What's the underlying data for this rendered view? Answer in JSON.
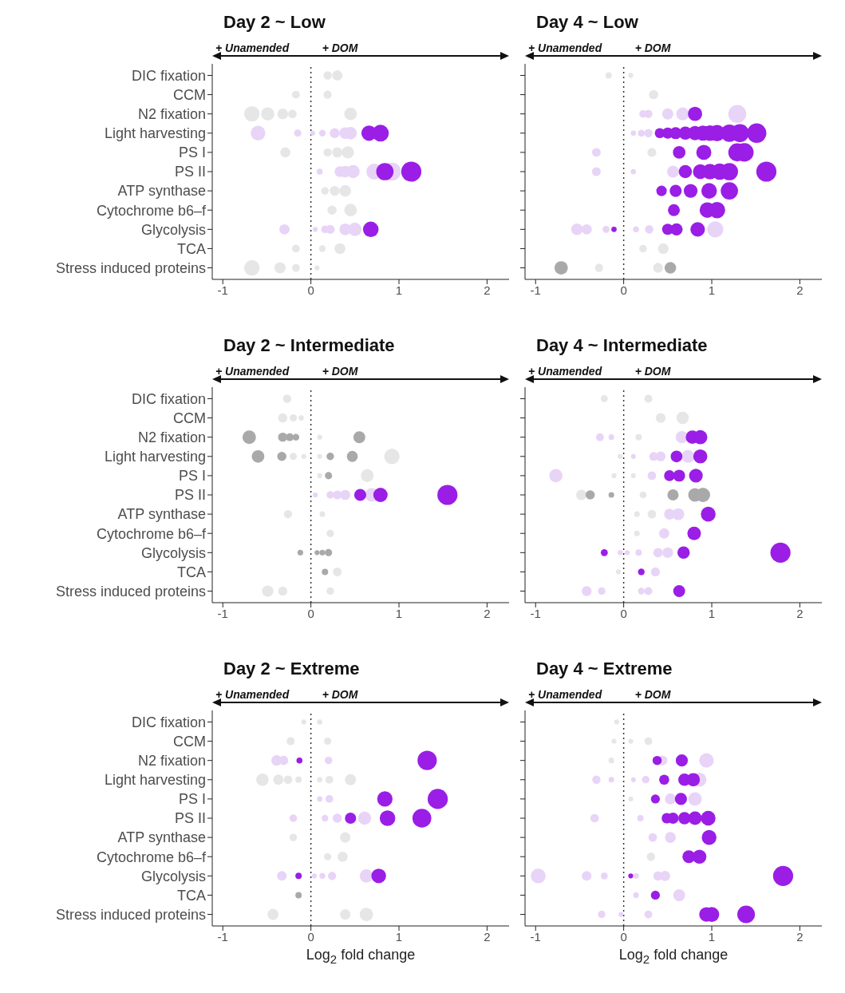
{
  "chart_data": [
    {
      "type": "bubble",
      "orientation": "horizontal",
      "title": "Day 2 ~ Low",
      "marker": "circle",
      "categories": [
        "DIC fixation",
        "CCM",
        "N2 fixation",
        "Light harvesting",
        "PS I",
        "PS II",
        "ATP synthase",
        "Cytochrome b6–f",
        "Glycolysis",
        "TCA",
        "Stress induced proteins"
      ],
      "xlim": [
        -1.12,
        2.25
      ],
      "xticks": [
        -1,
        0,
        1,
        2
      ],
      "annotations": [
        "+ Unamended",
        "+ DOM"
      ],
      "ref_lines": [
        {
          "axis": "x",
          "value": 0,
          "line_style": "dotted",
          "color": "#333333"
        }
      ],
      "series": [
        {
          "color": "#e6e6e6",
          "x": [
            "DIC fixation",
            "DIC fixation",
            "CCM",
            "CCM",
            "N2 fixation",
            "N2 fixation",
            "N2 fixation",
            "N2 fixation",
            "N2 fixation",
            "PS I",
            "PS I",
            "PS I",
            "PS I",
            "ATP synthase",
            "ATP synthase",
            "ATP synthase",
            "Cytochrome b6–f",
            "Cytochrome b6–f",
            "TCA",
            "TCA",
            "TCA",
            "Stress induced proteins",
            "Stress induced proteins",
            "Stress induced proteins",
            "Stress induced proteins"
          ],
          "values": [
            0.19,
            0.3,
            -0.17,
            0.19,
            -0.67,
            -0.49,
            -0.32,
            -0.21,
            0.45,
            -0.29,
            0.19,
            0.3,
            0.42,
            0.16,
            0.27,
            0.39,
            0.24,
            0.45,
            -0.17,
            0.13,
            0.33,
            -0.67,
            -0.35,
            -0.17,
            0.07
          ],
          "sizes": [
            0.17,
            0.26,
            0.15,
            0.17,
            0.59,
            0.43,
            0.28,
            0.18,
            0.39,
            0.25,
            0.17,
            0.26,
            0.37,
            0.14,
            0.24,
            0.34,
            0.21,
            0.39,
            0.15,
            0.11,
            0.29,
            0.59,
            0.31,
            0.15,
            0.06
          ]
        },
        {
          "color": "#e8d4f7",
          "x": [
            "Light harvesting",
            "Light harvesting",
            "Light harvesting",
            "Light harvesting",
            "Light harvesting",
            "Light harvesting",
            "Light harvesting",
            "PS II",
            "PS II",
            "PS II",
            "PS II",
            "PS II",
            "PS II",
            "Glycolysis",
            "Glycolysis",
            "Glycolysis",
            "Glycolysis",
            "Glycolysis",
            "Glycolysis"
          ],
          "values": [
            -0.6,
            -0.15,
            0.02,
            0.13,
            0.27,
            0.39,
            0.45,
            0.1,
            0.33,
            0.39,
            0.48,
            0.72,
            0.92,
            -0.3,
            0.05,
            0.16,
            0.22,
            0.39,
            0.5
          ],
          "sizes": [
            0.53,
            0.13,
            0.06,
            0.11,
            0.24,
            0.34,
            0.39,
            0.09,
            0.29,
            0.34,
            0.42,
            0.63,
            0.81,
            0.26,
            0.06,
            0.14,
            0.19,
            0.34,
            0.44
          ]
        },
        {
          "color": "#9a1ee6",
          "x": [
            "Light harvesting",
            "Light harvesting",
            "PS II",
            "PS II",
            "Glycolysis"
          ],
          "values": [
            0.66,
            0.79,
            0.84,
            1.14,
            0.68
          ],
          "sizes": [
            0.58,
            0.69,
            0.74,
            1,
            0.6
          ]
        }
      ]
    },
    {
      "type": "bubble",
      "orientation": "horizontal",
      "title": "Day 4 ~ Low",
      "marker": "circle",
      "tick_labels": "x",
      "categories": [
        "DIC fixation",
        "CCM",
        "N2 fixation",
        "Light harvesting",
        "PS I",
        "PS II",
        "ATP synthase",
        "Cytochrome b6–f",
        "Glycolysis",
        "TCA",
        "Stress induced proteins"
      ],
      "xlim": [
        -1.12,
        2.25
      ],
      "xticks": [
        -1,
        0,
        1,
        2
      ],
      "annotations": [
        "+ Unamended",
        "+ DOM"
      ],
      "ref_lines": [
        {
          "axis": "x",
          "value": 0,
          "line_style": "dotted",
          "color": "#333333"
        }
      ],
      "series": [
        {
          "color": "#e6e6e6",
          "x": [
            "DIC fixation",
            "DIC fixation",
            "CCM",
            "PS I",
            "TCA",
            "TCA",
            "Stress induced proteins",
            "Stress induced proteins"
          ],
          "values": [
            -0.17,
            0.08,
            0.34,
            0.32,
            0.22,
            0.45,
            -0.28,
            0.39
          ],
          "sizes": [
            0.1,
            0.06,
            0.21,
            0.2,
            0.14,
            0.28,
            0.17,
            0.24
          ]
        },
        {
          "color": "#e8d4f7",
          "x": [
            "N2 fixation",
            "N2 fixation",
            "N2 fixation",
            "N2 fixation",
            "N2 fixation",
            "Light harvesting",
            "Light harvesting",
            "Light harvesting",
            "PS I",
            "PS II",
            "PS II",
            "PS II",
            "Glycolysis",
            "Glycolysis",
            "Glycolysis",
            "Glycolysis",
            "Glycolysis",
            "Glycolysis"
          ],
          "values": [
            0.22,
            0.28,
            0.5,
            0.67,
            1.29,
            0.11,
            0.2,
            0.28,
            -0.31,
            -0.31,
            0.11,
            0.56,
            -0.53,
            -0.42,
            -0.2,
            0.14,
            0.29,
            1.04
          ],
          "sizes": [
            0.14,
            0.17,
            0.31,
            0.41,
            0.8,
            0.07,
            0.12,
            0.17,
            0.19,
            0.19,
            0.07,
            0.35,
            0.33,
            0.26,
            0.12,
            0.09,
            0.18,
            0.64
          ]
        },
        {
          "color": "#a9a9a9",
          "x": [
            "Stress induced proteins",
            "Stress induced proteins"
          ],
          "values": [
            -0.71,
            0.53
          ],
          "sizes": [
            0.44,
            0.33
          ]
        },
        {
          "color": "#9a1ee6",
          "x": [
            "N2 fixation",
            "Light harvesting",
            "Light harvesting",
            "Light harvesting",
            "Light harvesting",
            "Light harvesting",
            "Light harvesting",
            "Light harvesting",
            "Light harvesting",
            "Light harvesting",
            "Light harvesting",
            "Light harvesting",
            "PS I",
            "PS I",
            "PS I",
            "PS I",
            "PS II",
            "PS II",
            "PS II",
            "PS II",
            "PS II",
            "PS II",
            "ATP synthase",
            "ATP synthase",
            "ATP synthase",
            "ATP synthase",
            "ATP synthase",
            "Cytochrome b6–f",
            "Cytochrome b6–f",
            "Cytochrome b6–f",
            "Glycolysis",
            "Glycolysis",
            "Glycolysis",
            "Glycolysis"
          ],
          "values": [
            0.81,
            0.41,
            0.5,
            0.59,
            0.7,
            0.81,
            0.9,
            0.98,
            1.06,
            1.2,
            1.32,
            1.51,
            0.63,
            0.91,
            1.29,
            1.37,
            0.7,
            0.87,
            0.98,
            1.09,
            1.2,
            1.62,
            0.43,
            0.59,
            0.76,
            0.97,
            1.2,
            0.57,
            0.95,
            1.06,
            -0.11,
            0.5,
            0.6,
            0.84
          ],
          "sizes": [
            0.5,
            0.25,
            0.31,
            0.36,
            0.43,
            0.5,
            0.56,
            0.6,
            0.65,
            0.74,
            0.81,
            0.93,
            0.39,
            0.56,
            0.8,
            0.85,
            0.43,
            0.54,
            0.6,
            0.67,
            0.74,
            1,
            0.27,
            0.36,
            0.47,
            0.6,
            0.74,
            0.35,
            0.59,
            0.65,
            0.07,
            0.31,
            0.37,
            0.52
          ]
        }
      ]
    },
    {
      "type": "bubble",
      "orientation": "horizontal",
      "title": "Day 2 ~ Intermediate",
      "marker": "circle",
      "categories": [
        "DIC fixation",
        "CCM",
        "N2 fixation",
        "Light harvesting",
        "PS I",
        "PS II",
        "ATP synthase",
        "Cytochrome b6–f",
        "Glycolysis",
        "TCA",
        "Stress induced proteins"
      ],
      "xlim": [
        -1.12,
        2.25
      ],
      "xticks": [
        -1,
        0,
        1,
        2
      ],
      "annotations": [
        "+ Unamended",
        "+ DOM"
      ],
      "ref_lines": [
        {
          "axis": "x",
          "value": 0,
          "line_style": "dotted",
          "color": "#333333"
        }
      ],
      "series": [
        {
          "color": "#e6e6e6",
          "x": [
            "DIC fixation",
            "CCM",
            "CCM",
            "CCM",
            "N2 fixation",
            "Light harvesting",
            "Light harvesting",
            "Light harvesting",
            "Light harvesting",
            "PS I",
            "PS I",
            "ATP synthase",
            "ATP synthase",
            "Cytochrome b6–f",
            "TCA",
            "Stress induced proteins",
            "Stress induced proteins",
            "Stress induced proteins"
          ],
          "values": [
            -0.27,
            -0.32,
            -0.2,
            -0.11,
            0.1,
            -0.2,
            -0.08,
            0.1,
            0.92,
            0.1,
            0.64,
            -0.26,
            0.13,
            0.22,
            0.3,
            -0.49,
            -0.32,
            0.22
          ],
          "sizes": [
            0.17,
            0.21,
            0.13,
            0.07,
            0.06,
            0.13,
            0.06,
            0.06,
            0.59,
            0.06,
            0.41,
            0.17,
            0.08,
            0.14,
            0.19,
            0.32,
            0.21,
            0.14
          ]
        },
        {
          "color": "#e8d4f7",
          "x": [
            "PS II",
            "PS II",
            "PS II",
            "PS II",
            "PS II"
          ],
          "values": [
            0.05,
            0.22,
            0.3,
            0.39,
            0.69
          ],
          "sizes": [
            0.06,
            0.14,
            0.19,
            0.25,
            0.45
          ]
        },
        {
          "color": "#a9a9a9",
          "x": [
            "N2 fixation",
            "N2 fixation",
            "N2 fixation",
            "N2 fixation",
            "N2 fixation",
            "Light harvesting",
            "Light harvesting",
            "Light harvesting",
            "Light harvesting",
            "PS I",
            "Glycolysis",
            "Glycolysis",
            "Glycolysis",
            "Glycolysis",
            "TCA"
          ],
          "values": [
            -0.7,
            -0.32,
            -0.24,
            -0.17,
            0.55,
            -0.6,
            -0.33,
            0.22,
            0.47,
            0.2,
            -0.12,
            0.07,
            0.13,
            0.2,
            0.16
          ],
          "sizes": [
            0.45,
            0.21,
            0.15,
            0.11,
            0.35,
            0.39,
            0.21,
            0.14,
            0.3,
            0.13,
            0.08,
            0.06,
            0.08,
            0.13,
            0.1
          ]
        },
        {
          "color": "#9a1ee6",
          "x": [
            "PS II",
            "PS II",
            "PS II"
          ],
          "values": [
            0.56,
            0.79,
            1.55
          ],
          "sizes": [
            0.36,
            0.51,
            1
          ]
        }
      ]
    },
    {
      "type": "bubble",
      "orientation": "horizontal",
      "title": "Day 4 ~ Intermediate",
      "marker": "circle",
      "tick_labels": "x",
      "categories": [
        "DIC fixation",
        "CCM",
        "N2 fixation",
        "Light harvesting",
        "PS I",
        "PS II",
        "ATP synthase",
        "Cytochrome b6–f",
        "Glycolysis",
        "TCA",
        "Stress induced proteins"
      ],
      "xlim": [
        -1.12,
        2.25
      ],
      "xticks": [
        -1,
        0,
        1,
        2
      ],
      "annotations": [
        "+ Unamended",
        "+ DOM"
      ],
      "ref_lines": [
        {
          "axis": "x",
          "value": 0,
          "line_style": "dotted",
          "color": "#333333"
        }
      ],
      "series": [
        {
          "color": "#e6e6e6",
          "x": [
            "DIC fixation",
            "DIC fixation",
            "CCM",
            "CCM",
            "N2 fixation",
            "Light harvesting",
            "PS I",
            "PS I",
            "PS II",
            "PS II",
            "ATP synthase",
            "ATP synthase",
            "Cytochrome b6–f",
            "TCA"
          ],
          "values": [
            -0.22,
            0.28,
            0.42,
            0.67,
            0.17,
            -0.04,
            -0.11,
            0.11,
            -0.48,
            0.22,
            0.15,
            0.32,
            0.15,
            -0.06
          ],
          "sizes": [
            0.12,
            0.16,
            0.24,
            0.38,
            0.1,
            0.06,
            0.06,
            0.06,
            0.27,
            0.12,
            0.08,
            0.18,
            0.08,
            0.06
          ]
        },
        {
          "color": "#e8d4f7",
          "x": [
            "N2 fixation",
            "N2 fixation",
            "N2 fixation",
            "Light harvesting",
            "Light harvesting",
            "Light harvesting",
            "Light harvesting",
            "PS I",
            "PS I",
            "ATP synthase",
            "ATP synthase",
            "Cytochrome b6–f",
            "Glycolysis",
            "Glycolysis",
            "Glycolysis",
            "Glycolysis",
            "Glycolysis",
            "TCA",
            "Stress induced proteins",
            "Stress induced proteins",
            "Stress induced proteins",
            "Stress induced proteins"
          ],
          "values": [
            -0.27,
            -0.14,
            0.66,
            0.11,
            0.34,
            0.42,
            0.73,
            -0.77,
            0.32,
            0.52,
            0.62,
            0.46,
            -0.04,
            0.04,
            0.17,
            0.39,
            0.5,
            0.36,
            -0.42,
            -0.25,
            0.2,
            0.28
          ],
          "sizes": [
            0.15,
            0.08,
            0.37,
            0.06,
            0.19,
            0.24,
            0.41,
            0.43,
            0.18,
            0.29,
            0.35,
            0.26,
            0.06,
            0.06,
            0.1,
            0.22,
            0.28,
            0.2,
            0.24,
            0.14,
            0.11,
            0.16
          ]
        },
        {
          "color": "#a9a9a9",
          "x": [
            "PS II",
            "PS II",
            "PS II",
            "PS II",
            "PS II"
          ],
          "values": [
            -0.38,
            -0.14,
            0.56,
            0.81,
            0.9
          ],
          "sizes": [
            0.21,
            0.08,
            0.31,
            0.46,
            0.51
          ]
        },
        {
          "color": "#9a1ee6",
          "x": [
            "N2 fixation",
            "N2 fixation",
            "Light harvesting",
            "Light harvesting",
            "PS I",
            "PS I",
            "PS I",
            "ATP synthase",
            "Cytochrome b6–f",
            "Glycolysis",
            "Glycolysis",
            "Glycolysis",
            "TCA",
            "Stress induced proteins"
          ],
          "values": [
            0.78,
            0.87,
            0.6,
            0.87,
            0.52,
            0.63,
            0.82,
            0.96,
            0.8,
            -0.22,
            0.68,
            1.78,
            0.2,
            0.63
          ],
          "sizes": [
            0.44,
            0.49,
            0.34,
            0.49,
            0.29,
            0.35,
            0.46,
            0.54,
            0.45,
            0.12,
            0.38,
            1,
            0.11,
            0.35
          ]
        }
      ]
    },
    {
      "type": "bubble",
      "orientation": "horizontal",
      "title": "Day 2 ~ Extreme",
      "xlabel": "Log$_{2}$ fold change",
      "marker": "circle",
      "categories": [
        "DIC fixation",
        "CCM",
        "N2 fixation",
        "Light harvesting",
        "PS I",
        "PS II",
        "ATP synthase",
        "Cytochrome b6–f",
        "Glycolysis",
        "TCA",
        "Stress induced proteins"
      ],
      "xlim": [
        -1.12,
        2.25
      ],
      "xticks": [
        -1,
        0,
        1,
        2
      ],
      "annotations": [
        "+ Unamended",
        "+ DOM"
      ],
      "ref_lines": [
        {
          "axis": "x",
          "value": 0,
          "line_style": "dotted",
          "color": "#333333"
        }
      ],
      "series": [
        {
          "color": "#e6e6e6",
          "x": [
            "DIC fixation",
            "DIC fixation",
            "CCM",
            "CCM",
            "Light harvesting",
            "Light harvesting",
            "Light harvesting",
            "Light harvesting",
            "Light harvesting",
            "Light harvesting",
            "Light harvesting",
            "ATP synthase",
            "ATP synthase",
            "Cytochrome b6–f",
            "Cytochrome b6–f",
            "Stress induced proteins",
            "Stress induced proteins",
            "Stress induced proteins"
          ],
          "values": [
            -0.08,
            0.1,
            -0.23,
            0.19,
            -0.55,
            -0.37,
            -0.26,
            -0.14,
            0.1,
            0.21,
            0.45,
            -0.2,
            0.39,
            0.19,
            0.36,
            -0.43,
            0.39,
            0.63
          ],
          "sizes": [
            0.06,
            0.07,
            0.16,
            0.13,
            0.38,
            0.26,
            0.18,
            0.1,
            0.07,
            0.15,
            0.31,
            0.14,
            0.27,
            0.13,
            0.25,
            0.3,
            0.27,
            0.44
          ]
        },
        {
          "color": "#e8d4f7",
          "x": [
            "N2 fixation",
            "N2 fixation",
            "N2 fixation",
            "PS I",
            "PS I",
            "PS II",
            "PS II",
            "PS II",
            "PS II",
            "Glycolysis",
            "Glycolysis",
            "Glycolysis",
            "Glycolysis",
            "Glycolysis"
          ],
          "values": [
            -0.39,
            -0.31,
            0.2,
            0.1,
            0.21,
            -0.2,
            0.16,
            0.3,
            0.61,
            -0.33,
            0.04,
            0.13,
            0.24,
            0.63
          ],
          "sizes": [
            0.27,
            0.22,
            0.14,
            0.07,
            0.15,
            0.14,
            0.11,
            0.21,
            0.42,
            0.23,
            0.06,
            0.09,
            0.17,
            0.44
          ]
        },
        {
          "color": "#a9a9a9",
          "x": [
            "TCA"
          ],
          "values": [
            -0.14
          ],
          "sizes": [
            0.1
          ]
        },
        {
          "color": "#9a1ee6",
          "x": [
            "N2 fixation",
            "N2 fixation",
            "PS I",
            "PS I",
            "PS II",
            "PS II",
            "PS II",
            "Glycolysis",
            "Glycolysis"
          ],
          "values": [
            -0.13,
            1.32,
            0.84,
            1.44,
            0.45,
            0.87,
            1.26,
            -0.14,
            0.77
          ],
          "sizes": [
            0.09,
            0.92,
            0.58,
            1,
            0.31,
            0.6,
            0.88,
            0.1,
            0.53
          ]
        }
      ]
    },
    {
      "type": "bubble",
      "orientation": "horizontal",
      "title": "Day 4 ~ Extreme",
      "xlabel": "Log$_{2}$ fold change",
      "marker": "circle",
      "tick_labels": "x",
      "categories": [
        "DIC fixation",
        "CCM",
        "N2 fixation",
        "Light harvesting",
        "PS I",
        "PS II",
        "ATP synthase",
        "Cytochrome b6–f",
        "Glycolysis",
        "TCA",
        "Stress induced proteins"
      ],
      "xlim": [
        -1.12,
        2.25
      ],
      "xticks": [
        -1,
        0,
        1,
        2
      ],
      "annotations": [
        "+ Unamended",
        "+ DOM"
      ],
      "ref_lines": [
        {
          "axis": "x",
          "value": 0,
          "line_style": "dotted",
          "color": "#333333"
        }
      ],
      "series": [
        {
          "color": "#e6e6e6",
          "x": [
            "DIC fixation",
            "CCM",
            "CCM",
            "CCM",
            "N2 fixation",
            "PS I",
            "Cytochrome b6–f"
          ],
          "values": [
            -0.08,
            -0.11,
            0.08,
            0.28,
            -0.14,
            0.08,
            0.31
          ],
          "sizes": [
            0.06,
            0.06,
            0.06,
            0.15,
            0.08,
            0.06,
            0.17
          ]
        },
        {
          "color": "#e8d4f7",
          "x": [
            "N2 fixation",
            "N2 fixation",
            "Light harvesting",
            "Light harvesting",
            "Light harvesting",
            "Light harvesting",
            "Light harvesting",
            "PS I",
            "PS I",
            "PS II",
            "PS II",
            "ATP synthase",
            "ATP synthase",
            "Glycolysis",
            "Glycolysis",
            "Glycolysis",
            "Glycolysis",
            "Glycolysis",
            "Glycolysis",
            "TCA",
            "TCA",
            "Stress induced proteins",
            "Stress induced proteins",
            "Stress induced proteins"
          ],
          "values": [
            0.44,
            0.94,
            -0.31,
            -0.14,
            0.11,
            0.25,
            0.86,
            0.53,
            0.81,
            -0.33,
            0.19,
            0.33,
            0.53,
            -0.97,
            -0.42,
            -0.22,
            0.14,
            0.39,
            0.47,
            0.14,
            0.63,
            -0.25,
            -0.03,
            0.28
          ],
          "sizes": [
            0.24,
            0.52,
            0.17,
            0.08,
            0.06,
            0.14,
            0.48,
            0.29,
            0.45,
            0.18,
            0.1,
            0.18,
            0.29,
            0.54,
            0.23,
            0.12,
            0.08,
            0.22,
            0.26,
            0.08,
            0.35,
            0.14,
            0.06,
            0.15
          ]
        },
        {
          "color": "#9a1ee6",
          "x": [
            "N2 fixation",
            "N2 fixation",
            "Light harvesting",
            "Light harvesting",
            "Light harvesting",
            "PS I",
            "PS I",
            "PS II",
            "PS II",
            "PS II",
            "PS II",
            "PS II",
            "ATP synthase",
            "Cytochrome b6–f",
            "Cytochrome b6–f",
            "Glycolysis",
            "Glycolysis",
            "TCA",
            "Stress induced proteins",
            "Stress induced proteins",
            "Stress induced proteins"
          ],
          "values": [
            0.38,
            0.66,
            0.46,
            0.69,
            0.79,
            0.36,
            0.65,
            0.49,
            0.56,
            0.69,
            0.81,
            0.96,
            0.97,
            0.74,
            0.86,
            0.08,
            1.81,
            0.36,
            0.94,
            1.0,
            1.39
          ],
          "sizes": [
            0.21,
            0.36,
            0.25,
            0.38,
            0.44,
            0.2,
            0.36,
            0.27,
            0.31,
            0.38,
            0.45,
            0.53,
            0.54,
            0.41,
            0.48,
            0.06,
            1,
            0.2,
            0.52,
            0.55,
            0.77
          ]
        }
      ]
    }
  ]
}
